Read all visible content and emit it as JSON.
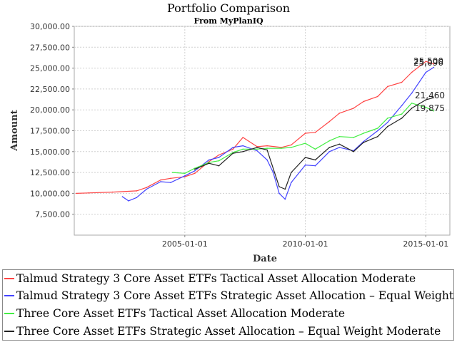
{
  "chart_data": {
    "type": "line",
    "title": "Portfolio Comparison",
    "subtitle": "From MyPlanIQ",
    "xlabel": "Date",
    "ylabel": "Amount",
    "x_ticks": [
      "2005-01-01",
      "2010-01-01",
      "2015-01-01"
    ],
    "y_ticks": [
      "7,500.00",
      "10,000.00",
      "12,500.00",
      "15,000.00",
      "17,500.00",
      "20,000.00",
      "22,500.00",
      "25,000.00",
      "27,500.00",
      "30,000.00"
    ],
    "ylim": [
      5000,
      30000
    ],
    "xlim": [
      "2000-06-01",
      "2015-12-31"
    ],
    "grid": true,
    "legend_position": "bottom",
    "end_labels": [
      "25,500",
      "25,096",
      "21,460",
      "19,875"
    ],
    "series": [
      {
        "name": "Talmud Strategy 3 Core Asset ETFs Tactical Asset Allocation Moderate",
        "color": "#ff4444",
        "x": [
          "2000-07",
          "2001-01",
          "2002-01",
          "2003-01",
          "2003-06",
          "2004-01",
          "2004-06",
          "2005-01",
          "2005-06",
          "2006-01",
          "2006-06",
          "2007-01",
          "2007-06",
          "2008-01",
          "2008-06",
          "2009-01",
          "2009-06",
          "2010-01",
          "2010-06",
          "2011-01",
          "2011-06",
          "2012-01",
          "2012-06",
          "2013-01",
          "2013-06",
          "2014-01",
          "2014-06",
          "2015-01",
          "2015-05"
        ],
        "values": [
          10000,
          10050,
          10150,
          10300,
          10700,
          11600,
          11800,
          12000,
          12400,
          13800,
          14600,
          15300,
          16700,
          15600,
          15700,
          15500,
          15800,
          17200,
          17300,
          18600,
          19600,
          20200,
          21000,
          21600,
          22800,
          23300,
          24500,
          25800,
          25500
        ]
      },
      {
        "name": "Talmud Strategy 3 Core Asset ETFs Strategic Asset Allocation – Equal Weight",
        "color": "#4444ff",
        "x": [
          "2002-06",
          "2002-09",
          "2003-01",
          "2003-06",
          "2004-01",
          "2004-06",
          "2005-01",
          "2005-06",
          "2006-01",
          "2006-06",
          "2007-01",
          "2007-06",
          "2008-01",
          "2008-06",
          "2008-09",
          "2008-12",
          "2009-03",
          "2009-06",
          "2010-01",
          "2010-06",
          "2011-01",
          "2011-06",
          "2012-01",
          "2012-06",
          "2013-01",
          "2013-06",
          "2014-01",
          "2014-06",
          "2015-01",
          "2015-05"
        ],
        "values": [
          9600,
          9100,
          9500,
          10500,
          11400,
          11300,
          12100,
          12700,
          14000,
          14300,
          15500,
          15700,
          15100,
          14000,
          12500,
          10000,
          9300,
          11300,
          13400,
          13300,
          15000,
          15500,
          15100,
          16200,
          17500,
          18500,
          20500,
          22000,
          24500,
          25096
        ]
      },
      {
        "name": "Three Core Asset ETFs Tactical Asset Allocation Moderate",
        "color": "#44ee44",
        "x": [
          "2004-07",
          "2005-01",
          "2005-06",
          "2006-01",
          "2006-06",
          "2007-01",
          "2007-06",
          "2008-01",
          "2008-06",
          "2009-01",
          "2009-06",
          "2010-01",
          "2010-06",
          "2011-01",
          "2011-06",
          "2012-01",
          "2012-06",
          "2013-01",
          "2013-06",
          "2014-01",
          "2014-06",
          "2015-01",
          "2015-05"
        ],
        "values": [
          12500,
          12400,
          13000,
          13700,
          13900,
          14900,
          15300,
          15300,
          15400,
          15400,
          15500,
          16000,
          15300,
          16300,
          16800,
          16700,
          17200,
          17800,
          19000,
          19500,
          20800,
          20300,
          19875
        ]
      },
      {
        "name": "Three Core Asset ETFs Strategic Asset Allocation – Equal Weight Moderate",
        "color": "#222222",
        "x": [
          "2005-06",
          "2006-01",
          "2006-06",
          "2007-01",
          "2007-06",
          "2008-01",
          "2008-06",
          "2008-12",
          "2009-03",
          "2009-06",
          "2010-01",
          "2010-06",
          "2011-01",
          "2011-06",
          "2012-01",
          "2012-06",
          "2013-01",
          "2013-06",
          "2014-01",
          "2014-06",
          "2015-01",
          "2015-05"
        ],
        "values": [
          12900,
          13600,
          13300,
          14800,
          15000,
          15500,
          15200,
          10800,
          10500,
          12500,
          14300,
          14000,
          15500,
          15900,
          15000,
          16100,
          16800,
          18000,
          19000,
          20200,
          21200,
          21460
        ]
      }
    ]
  }
}
